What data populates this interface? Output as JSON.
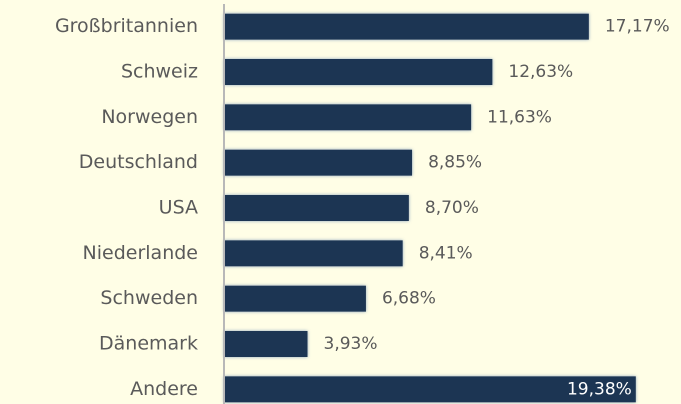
{
  "chart_data": {
    "type": "bar",
    "orientation": "horizontal",
    "categories": [
      "Großbritannien",
      "Schweiz",
      "Norwegen",
      "Deutschland",
      "USA",
      "Niederlande",
      "Schweden",
      "Dänemark",
      "Andere"
    ],
    "values": [
      17.17,
      12.63,
      11.63,
      8.85,
      8.7,
      8.41,
      6.68,
      3.93,
      19.38
    ],
    "value_labels": [
      "17,17%",
      "12,63%",
      "11,63%",
      "8,85%",
      "8,70%",
      "8,41%",
      "6,68%",
      "3,93%",
      "19,38%"
    ],
    "color": "#1f3552",
    "xlim": [
      0,
      20
    ]
  }
}
